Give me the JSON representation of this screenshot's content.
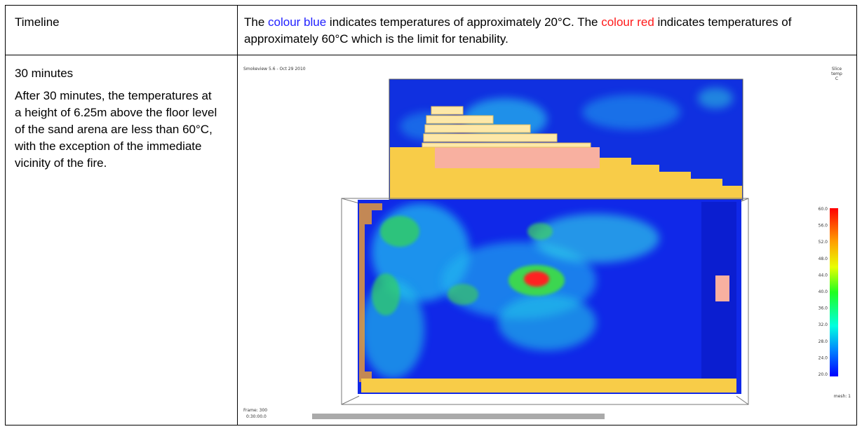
{
  "table": {
    "rows": [
      [
        "Timeline",
        [
          "The ",
          "colour blue",
          " indicates temperatures of approximately 20°C. The ",
          "colour red",
          " indicates temperatures of approximately 60°C which is the limit for tenability."
        ]
      ],
      [
        {
          "heading": "30 minutes",
          "body": "After 30 minutes, the temperatures at a height of 6.25m above the floor level of the sand arena are less than 60°C, with the exception of the immediate vicinity of the fire."
        },
        {
          "title": "Smokeview 5.6 - Oct 29 2010",
          "legend_title": [
            "Slice",
            "temp",
            "C"
          ],
          "legend_labels": [
            "60.0",
            "56.0",
            "52.0",
            "48.0",
            "44.0",
            "40.0",
            "36.0",
            "32.0",
            "28.0",
            "24.0",
            "20.0"
          ],
          "frame": "Frame: 300",
          "time": "0:30:00.0",
          "mesh": "mesh: 1"
        }
      ]
    ]
  }
}
